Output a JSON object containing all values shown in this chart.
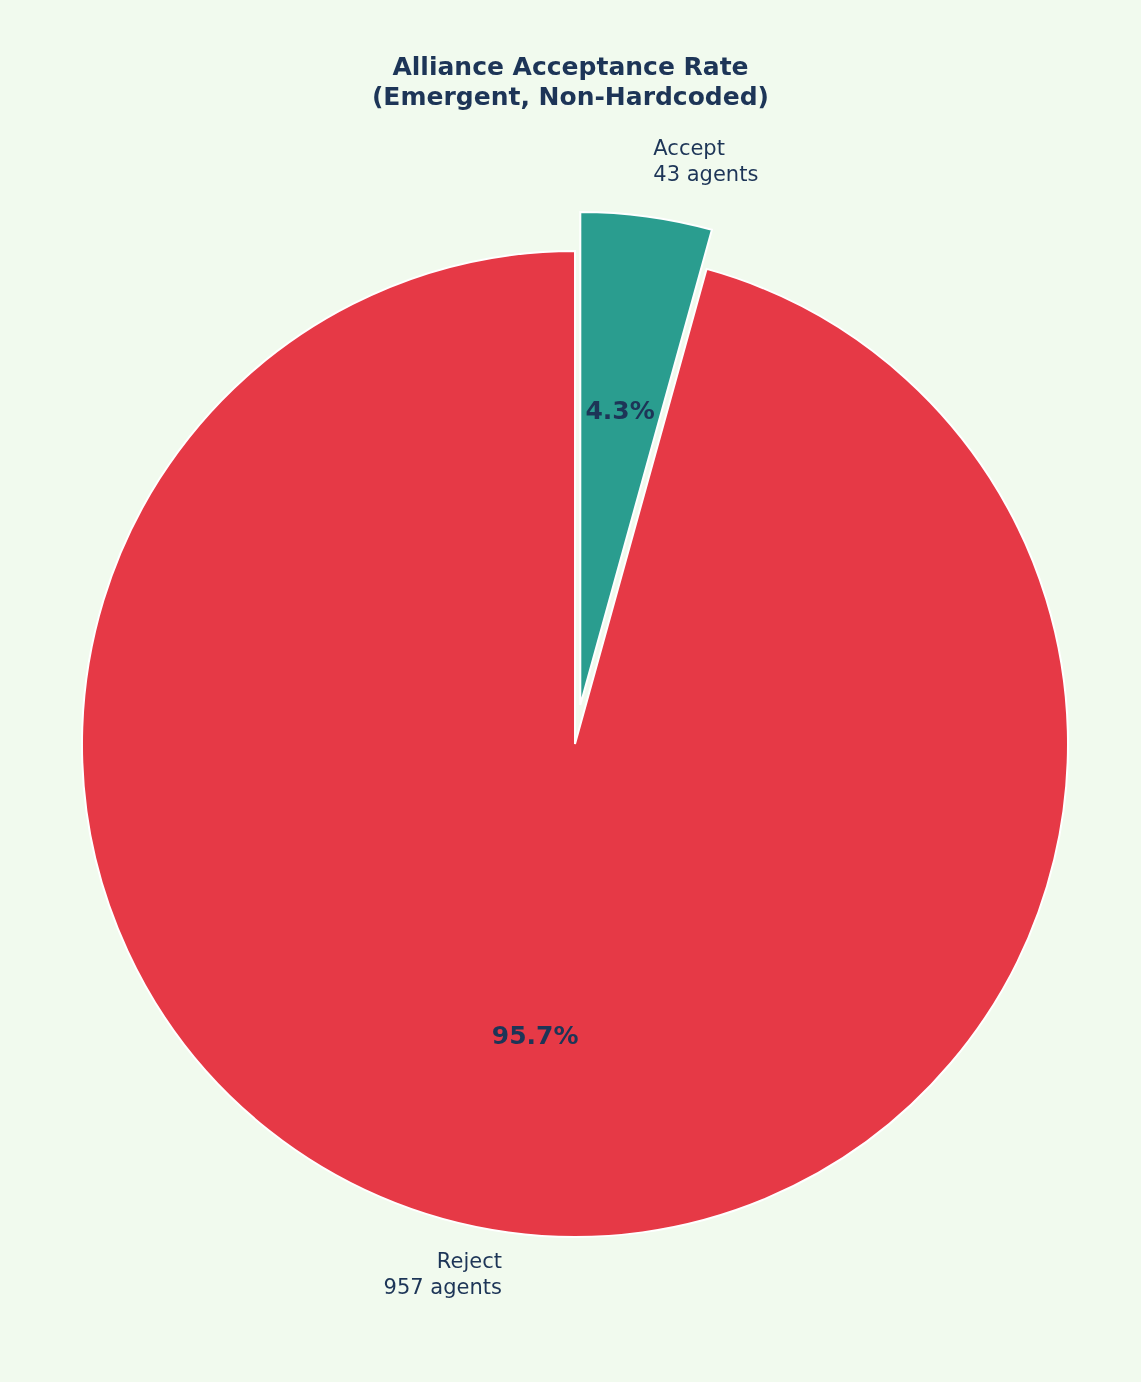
{
  "chart_data": {
    "type": "pie",
    "title": "Alliance Acceptance Rate\n(Emergent, Non-Hardcoded)",
    "categories": [
      "Accept\n43 agents",
      "Reject\n957 agents"
    ],
    "values": [
      4.3,
      95.7
    ],
    "colors": [
      "#2a9d8f",
      "#e63946"
    ],
    "value_labels": [
      "4.3%",
      "95.7%"
    ]
  }
}
